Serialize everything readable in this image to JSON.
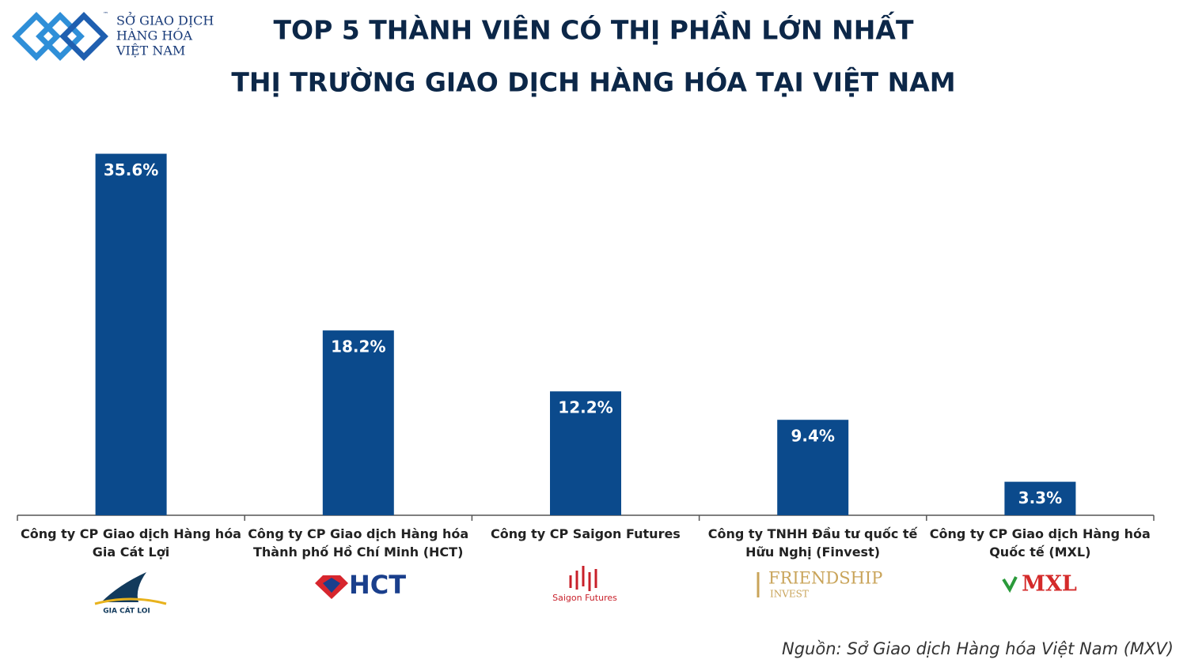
{
  "brand": {
    "tm": "™",
    "lines": [
      "SỞ GIAO DỊCH",
      "HÀNG HÓA",
      "VIỆT NAM"
    ]
  },
  "chart_data": {
    "type": "bar",
    "title": "TOP 5 THÀNH VIÊN CÓ THỊ PHẦN LỚN NHẤT",
    "subtitle": "THỊ TRƯỜNG GIAO DỊCH HÀNG HÓA TẠI VIỆT NAM",
    "categories": [
      "Công ty CP Giao dịch Hàng hóa\nGia Cát Lợi",
      "Công ty CP Giao dịch Hàng hóa\nThành phố Hồ Chí Minh (HCT)",
      "Công ty CP Saigon Futures",
      "Công ty TNHH Đầu tư quốc tế\nHữu Nghị (Finvest)",
      "Công ty CP Giao dịch Hàng hóa\nQuốc tế (MXL)"
    ],
    "values": [
      35.6,
      18.2,
      12.2,
      9.4,
      3.3
    ],
    "value_labels": [
      "35.6%",
      "18.2%",
      "12.2%",
      "9.4%",
      "3.3%"
    ],
    "color": "#0b4a8c",
    "ylim": [
      0,
      40
    ],
    "grid": false
  },
  "logos": {
    "gia_cat_loi": "GIA CÁT LOI",
    "hct": "HCT",
    "saigon_futures": "Saigon Futures",
    "friendship": "FRIENDSHIP",
    "invest": "INVEST",
    "mxl": "MXL"
  },
  "source": "Nguồn: Sở Giao dịch Hàng hóa Việt Nam (MXV)"
}
